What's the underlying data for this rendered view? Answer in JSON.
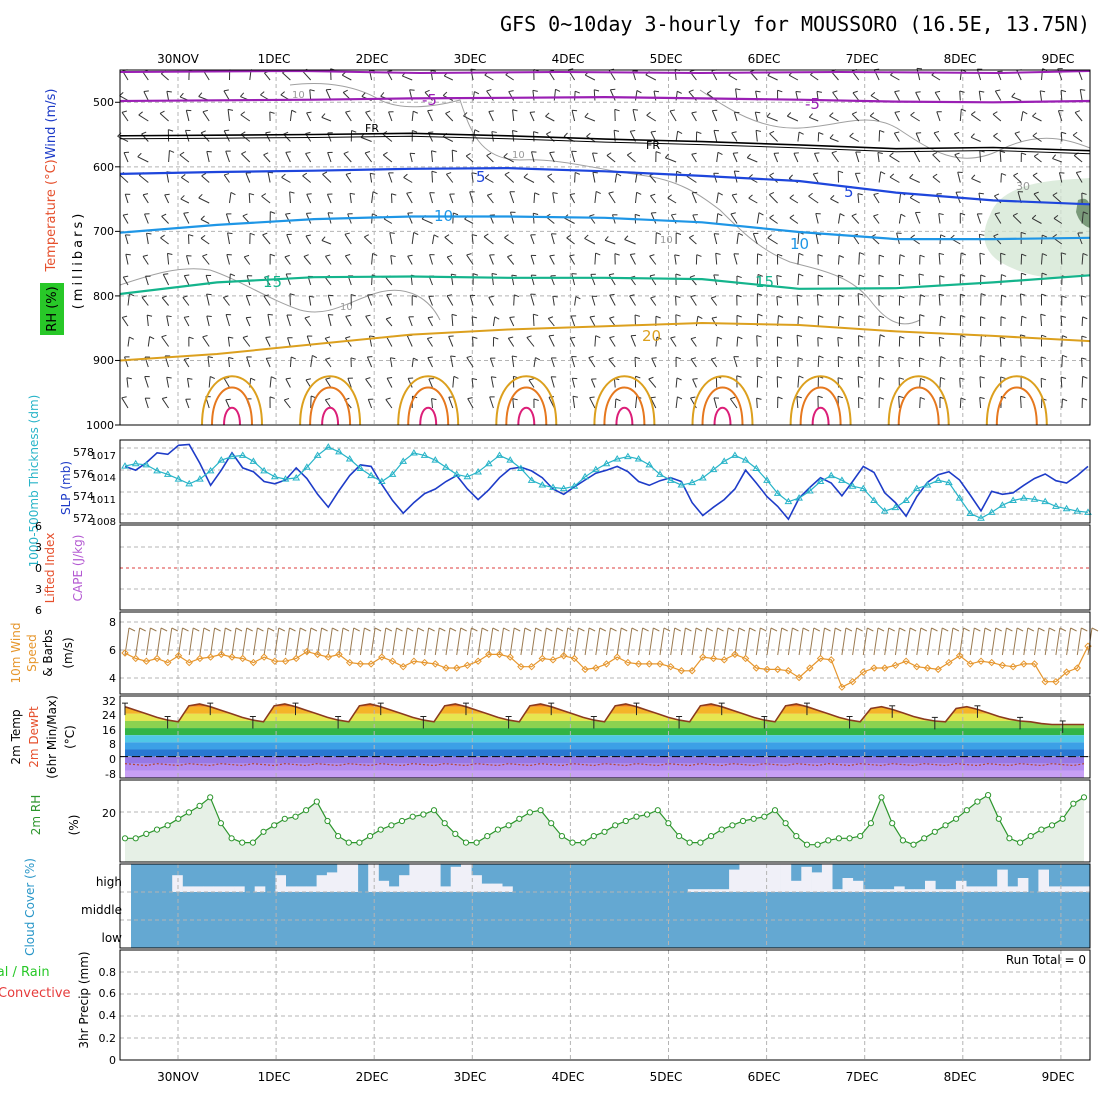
{
  "title": "GFS 0~10day 3-hourly for MOUSSORO (16.5E, 13.75N)",
  "date_labels": [
    "30NOV",
    "1DEC",
    "2DEC",
    "3DEC",
    "4DEC",
    "5DEC",
    "6DEC",
    "7DEC",
    "8DEC",
    "9DEC"
  ],
  "colors": {
    "grid": "#b4b4b4",
    "frame": "#000000",
    "purple": "#9a1fb4",
    "freezing": "#000000",
    "blue5": "#1e46dc",
    "blue10": "#1e96e6",
    "green15": "#14b48c",
    "orange20": "#dca01e",
    "orange25": "#e6781e",
    "magenta30": "#dc1e78",
    "thickness": "#28b4c8",
    "slp": "#1e3cc8",
    "wind10m": "#e6962d",
    "rh_fill": "#e6f0e6",
    "rh_line": "#2d962d",
    "cloud": "#64a8d2",
    "cloud_clear": "#f0f0f8",
    "zero_line": "#dc3c3c"
  },
  "chart_data": [
    {
      "panel": "upper_air",
      "type": "contour",
      "ylabel_parts": [
        "Wind",
        " (m/s)"
      ],
      "ylabel_temperature": "Temperature (°C)",
      "ylabel_rh": "RH (%)",
      "ylabel_pressure": "(millibars)",
      "y_ticks": [
        500,
        600,
        700,
        800,
        900,
        1000
      ],
      "ylim": [
        450,
        1000
      ],
      "isotherm_labels": [
        {
          "text": "-5",
          "value": -5
        },
        {
          "text": "-5",
          "value": -5
        },
        {
          "text": "FR",
          "value": 0
        },
        {
          "text": "FR",
          "value": 0
        },
        {
          "text": "5",
          "value": 5
        },
        {
          "text": "5",
          "value": 5
        },
        {
          "text": "10",
          "value": 10
        },
        {
          "text": "10",
          "value": 10
        },
        {
          "text": "15",
          "value": 15
        },
        {
          "text": "15",
          "value": 15
        },
        {
          "text": "20",
          "value": 20
        }
      ],
      "rh_labels": [
        "10",
        "10",
        "10",
        "10",
        "30"
      ],
      "isotherm_minus5_hpa": [
        498,
        497,
        496,
        494,
        493,
        492,
        494,
        496,
        499,
        500,
        498
      ],
      "isotherm_freezing_hpa": [
        552,
        551,
        550,
        548,
        552,
        557,
        561,
        566,
        572,
        570,
        575
      ],
      "isotherm_5_hpa": [
        611,
        608,
        606,
        603,
        602,
        607,
        614,
        622,
        640,
        652,
        658
      ],
      "isotherm_10_hpa": [
        702,
        690,
        681,
        677,
        677,
        679,
        686,
        701,
        712,
        712,
        710
      ],
      "isotherm_15_hpa": [
        797,
        779,
        771,
        770,
        772,
        772,
        774,
        789,
        788,
        779,
        768
      ],
      "isotherm_20_hpa": [
        900,
        890,
        875,
        860,
        852,
        847,
        842,
        845,
        855,
        862,
        870
      ]
    },
    {
      "panel": "slp_thickness",
      "type": "line",
      "ylabel_left": "1000-500mb Thickness (dm)",
      "ylabel_right": "SLP (mb)",
      "thickness_ticks": [
        "578",
        "576",
        "574",
        "572"
      ],
      "slp_ticks": [
        "1017",
        "1014",
        "1011",
        "1008"
      ],
      "series": [
        {
          "name": "Thickness (dm)",
          "ylim": [
            571.5,
            578.5
          ],
          "values": [
            576.3,
            576.5,
            576.4,
            575.9,
            575.6,
            575.2,
            574.8,
            575.2,
            575.9,
            576.8,
            577.1,
            577.2,
            576.7,
            575.9,
            575.4,
            575.2,
            575.3,
            576.2,
            577.2,
            577.9,
            577.5,
            576.9,
            576.1,
            575.5,
            575.0,
            575.6,
            576.7,
            577.4,
            577.2,
            576.8,
            576.2,
            575.6,
            575.4,
            575.8,
            576.5,
            577.2,
            576.8,
            576.1,
            575.1,
            574.7,
            574.5,
            574.4,
            574.6,
            575.4,
            576.0,
            576.5,
            576.9,
            577.1,
            576.9,
            576.4,
            575.6,
            575.1,
            574.7,
            574.9,
            575.3,
            576.0,
            576.7,
            577.2,
            576.8,
            576.1,
            575.1,
            574.0,
            573.3,
            573.6,
            574.2,
            575.0,
            575.5,
            575.1,
            574.6,
            574.4,
            573.4,
            572.5,
            572.8,
            573.4,
            574.4,
            574.7,
            575.1,
            574.9,
            573.6,
            572.3,
            571.9,
            572.4,
            573.0,
            573.4,
            573.6,
            573.5,
            573.3,
            572.9,
            572.7,
            572.5,
            572.4
          ]
        },
        {
          "name": "SLP (mb)",
          "ylim": [
            1007.5,
            1018.5
          ],
          "values": [
            1015.0,
            1014.5,
            1015.5,
            1016.8,
            1016.6,
            1017.8,
            1017.9,
            1015.4,
            1012.5,
            1014.5,
            1016.8,
            1014.8,
            1014.3,
            1013.0,
            1012.7,
            1013.2,
            1014.8,
            1013.4,
            1011.3,
            1009.6,
            1011.8,
            1013.8,
            1015.2,
            1015.0,
            1012.6,
            1010.5,
            1008.8,
            1010.2,
            1011.4,
            1012.0,
            1013.0,
            1013.8,
            1012.0,
            1010.6,
            1011.9,
            1013.5,
            1014.7,
            1014.9,
            1014.4,
            1013.5,
            1012.0,
            1011.3,
            1012.3,
            1013.2,
            1014.1,
            1014.5,
            1015.0,
            1014.3,
            1013.0,
            1012.5,
            1013.1,
            1013.5,
            1013.0,
            1010.2,
            1008.5,
            1009.6,
            1010.6,
            1012.0,
            1014.5,
            1012.8,
            1011.0,
            1009.7,
            1008.0,
            1010.8,
            1012.2,
            1013.5,
            1012.8,
            1011.1,
            1013.0,
            1015.0,
            1014.2,
            1011.5,
            1010.2,
            1008.4,
            1011.0,
            1012.9,
            1013.9,
            1014.3,
            1013.2,
            1011.2,
            1009.1,
            1011.7,
            1011.3,
            1011.5,
            1012.5,
            1013.4,
            1014.0,
            1013.1,
            1012.8,
            1013.8,
            1015.0
          ]
        }
      ]
    },
    {
      "panel": "stability",
      "type": "line",
      "ylabel_left": "Lifted Index",
      "ylabel_right": "CAPE (J/kg)",
      "ticks": [
        "6",
        "3",
        "0",
        "3",
        "6"
      ],
      "lifted_index": [],
      "cape": []
    },
    {
      "panel": "wind10m",
      "type": "line",
      "ylabel": "10m Wind Speed & Barbs (m/s)",
      "ylabel_parts": [
        "10m Wind",
        "Speed",
        "& Barbs",
        "(m/s)"
      ],
      "ticks": [
        "8",
        "6",
        "4"
      ],
      "ylim": [
        3,
        9
      ],
      "values": [
        6.0,
        5.6,
        5.4,
        5.6,
        5.3,
        5.8,
        5.3,
        5.6,
        5.7,
        5.9,
        5.7,
        5.6,
        5.3,
        5.7,
        5.4,
        5.4,
        5.6,
        6.1,
        5.9,
        5.7,
        5.9,
        5.3,
        5.2,
        5.2,
        5.7,
        5.4,
        5.0,
        5.4,
        5.3,
        5.2,
        4.9,
        4.9,
        5.1,
        5.4,
        5.9,
        5.9,
        5.7,
        5.0,
        5.0,
        5.6,
        5.5,
        5.8,
        5.6,
        4.8,
        4.9,
        5.2,
        5.7,
        5.3,
        5.2,
        5.2,
        5.2,
        5.0,
        4.7,
        4.7,
        5.7,
        5.6,
        5.5,
        5.9,
        5.6,
        4.9,
        4.8,
        4.8,
        4.7,
        4.2,
        4.9,
        5.6,
        5.5,
        3.5,
        3.9,
        4.6,
        4.9,
        4.9,
        5.1,
        5.4,
        5.0,
        4.9,
        4.8,
        5.3,
        5.8,
        5.2,
        5.4,
        5.3,
        5.1,
        5.0,
        5.2,
        5.2,
        3.9,
        3.9,
        4.6,
        4.9,
        6.5
      ]
    },
    {
      "panel": "temperature",
      "type": "area",
      "ylabel": "2m Temp 2m DewPt (6hr Min/Max) (°C)",
      "ylabel_parts": [
        "2m Temp",
        "2m DewPt",
        "(6hr Min/Max)",
        "(°C)"
      ],
      "ticks": [
        "32",
        "24",
        "16",
        "8",
        "0",
        "-8"
      ],
      "ylim": [
        -12,
        34
      ],
      "temp_2m": [
        28.0,
        26.0,
        24.0,
        22.0,
        20.5,
        19.5,
        28.5,
        29.5,
        28.0,
        26.0,
        24.0,
        22.0,
        20.5,
        19.5,
        28.5,
        29.5,
        28.0,
        26.0,
        24.0,
        22.0,
        20.5,
        19.5,
        28.5,
        29.5,
        28.0,
        26.0,
        24.0,
        22.0,
        20.5,
        19.5,
        28.5,
        29.5,
        28.0,
        26.0,
        24.0,
        22.0,
        20.5,
        19.5,
        28.5,
        29.5,
        28.0,
        26.0,
        24.0,
        22.0,
        20.5,
        19.5,
        28.5,
        29.5,
        28.0,
        26.0,
        24.0,
        22.0,
        20.5,
        19.5,
        28.5,
        29.5,
        28.0,
        26.0,
        24.0,
        22.0,
        20.5,
        19.5,
        28.5,
        29.5,
        28.0,
        26.0,
        24.0,
        22.0,
        20.5,
        19.5,
        27.0,
        28.0,
        26.5,
        24.5,
        22.5,
        21.0,
        20.0,
        19.5,
        27.0,
        28.0,
        26.5,
        24.5,
        22.5,
        21.0,
        20.0,
        19.5,
        18.5,
        18.0,
        18.0,
        18.0,
        18.0
      ],
      "dewpoint_2m": [
        -4.0,
        -4.5,
        -5.0,
        -4.0,
        -4.5,
        -5.0,
        -4.0,
        -4.5,
        -5.0,
        -4.0,
        -4.5,
        -5.0,
        -4.0,
        -4.5,
        -5.0,
        -4.0,
        -4.5,
        -5.0,
        -4.0,
        -4.5,
        -5.0,
        -4.0,
        -4.5,
        -5.0,
        -4.0,
        -4.5,
        -5.0,
        -4.0,
        -4.5,
        -5.0,
        -4.0,
        -4.5,
        -5.0,
        -4.0,
        -4.5,
        -5.0,
        -4.0,
        -4.5,
        -5.0,
        -4.0,
        -4.5,
        -5.0,
        -4.0,
        -4.5,
        -5.0,
        -4.0,
        -4.5,
        -5.0,
        -4.0,
        -4.5,
        -5.0,
        -4.0,
        -4.5,
        -5.0,
        -4.0,
        -4.5,
        -5.0,
        -4.0,
        -4.5,
        -5.0,
        -4.0,
        -4.5,
        -5.0,
        -4.0,
        -4.5,
        -5.0,
        -4.0,
        -4.5,
        -5.0,
        -4.0,
        -4.5,
        -5.0,
        -4.0,
        -4.5,
        -5.0,
        -4.0,
        -4.5,
        -5.0,
        -4.0,
        -4.5,
        -5.0,
        -4.0,
        -4.5,
        -5.0,
        -4.0,
        -4.5,
        -5.0,
        -4.0,
        -4.5,
        -5.0,
        -4.0
      ]
    },
    {
      "panel": "rh2m",
      "type": "area",
      "ylabel": "2m RH",
      "yunit": "(%)",
      "ticks": [
        "20"
      ],
      "ylim": [
        0,
        38
      ],
      "values": [
        11.0,
        11.0,
        13.0,
        15.0,
        17.0,
        20.0,
        23.0,
        26.0,
        30.0,
        18.0,
        11.0,
        9.0,
        9.0,
        14.0,
        17.0,
        20.0,
        21.0,
        24.0,
        28.0,
        19.0,
        12.0,
        9.0,
        9.0,
        12.0,
        15.0,
        17.0,
        19.0,
        21.0,
        22.0,
        24.0,
        18.0,
        13.0,
        9.0,
        9.0,
        12.0,
        15.0,
        17.0,
        20.0,
        23.0,
        24.0,
        18.0,
        12.0,
        9.0,
        9.0,
        12.0,
        14.0,
        17.0,
        19.0,
        21.0,
        22.0,
        24.0,
        18.0,
        12.0,
        9.0,
        9.0,
        12.0,
        15.0,
        17.0,
        19.0,
        20.0,
        21.0,
        24.0,
        18.0,
        12.0,
        8.0,
        8.0,
        10.0,
        11.0,
        11.0,
        12.0,
        18.0,
        30.0,
        18.0,
        10.0,
        8.0,
        11.0,
        14.0,
        17.0,
        20.0,
        24.0,
        28.0,
        31.0,
        20.0,
        11.0,
        9.0,
        12.0,
        15.0,
        17.0,
        20.0,
        27.0,
        30.0
      ]
    },
    {
      "panel": "cloud_cover",
      "type": "bar",
      "ylabel": "Cloud Cover (%)",
      "levels": [
        "high",
        "middle",
        "low"
      ],
      "high_clear_fraction": [
        0,
        0,
        0,
        0,
        0.6,
        0.2,
        0.2,
        0.2,
        0.2,
        0.2,
        0.2,
        0,
        0.2,
        0,
        0.6,
        0.2,
        0.2,
        0.2,
        0.6,
        0.7,
        1.0,
        1.0,
        0,
        1.0,
        0.4,
        0.2,
        0.6,
        1.0,
        1.0,
        1.0,
        0.2,
        0.9,
        1.0,
        0.6,
        0.3,
        0.3,
        0.2,
        0,
        0,
        0,
        0,
        0,
        0,
        0,
        0,
        0,
        0,
        0,
        0,
        0,
        0,
        0,
        0,
        0,
        0.1,
        0.1,
        0.1,
        0.1,
        0.8,
        1.0,
        1.0,
        1.0,
        1.0,
        1.0,
        0.4,
        0.9,
        0.7,
        1.0,
        0.1,
        0.5,
        0.4,
        0.1,
        0.1,
        0.1,
        0.2,
        0.1,
        0.1,
        0.4,
        0.1,
        0.1,
        0.4,
        0.2,
        0.2,
        0.2,
        0.8,
        0.2,
        0.5,
        0,
        0.8,
        0.2,
        0.2,
        0.2,
        0.2
      ]
    },
    {
      "panel": "precipitation",
      "type": "bar",
      "ylabel": "3hr Precip (mm)",
      "legend": [
        "Total / Rain",
        "Convective"
      ],
      "ticks": [
        "0.8",
        "0.6",
        "0.4",
        "0.2",
        "0"
      ],
      "ylim": [
        0,
        0.9
      ],
      "run_total_label": "Run Total = 0",
      "total": [],
      "convective": []
    }
  ]
}
